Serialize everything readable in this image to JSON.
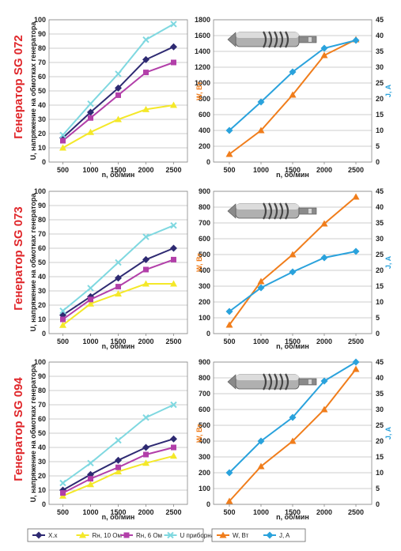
{
  "generators": [
    {
      "title": "Генератор SG 072",
      "voltage_chart": {
        "type": "line",
        "x": [
          500,
          1000,
          1500,
          2000,
          2500
        ],
        "xlabel": "n, об/мин",
        "ylabel": "U, напряжение на обмотках генератора",
        "ylim": [
          0,
          100
        ],
        "yticks": [
          0,
          10,
          20,
          30,
          40,
          50,
          60,
          70,
          80,
          90,
          100
        ],
        "series": [
          {
            "name": "Х.х",
            "values": [
              17,
              35,
              52,
              72,
              81
            ]
          },
          {
            "name": "Rн, 10 Ом",
            "values": [
              10,
              21,
              30,
              37,
              40
            ]
          },
          {
            "name": "Rн, 6 Ом",
            "values": [
              15,
              31,
              47,
              63,
              70
            ]
          },
          {
            "name": "U приборная, В",
            "values": [
              19,
              41,
              62,
              86,
              97
            ]
          }
        ]
      },
      "power_chart": {
        "type": "line",
        "x": [
          500,
          1000,
          1500,
          2000,
          2500
        ],
        "xlabel": "n, об/мин",
        "ylabel_left": "W, Вт",
        "ylabel_right": "J, A",
        "ylim_left": [
          0,
          1800
        ],
        "yticks_left": [
          0,
          200,
          400,
          600,
          800,
          1000,
          1200,
          1400,
          1600,
          1800
        ],
        "ylim_right": [
          0,
          45
        ],
        "yticks_right": [
          0,
          5,
          10,
          15,
          20,
          25,
          30,
          35,
          40,
          45
        ],
        "series": [
          {
            "name": "W, Вт",
            "axis": "left",
            "values": [
              100,
              400,
              850,
              1350,
              1550
            ]
          },
          {
            "name": "J, A",
            "axis": "right",
            "values": [
              10,
              19,
              28.5,
              36,
              38.5
            ]
          }
        ]
      }
    },
    {
      "title": "Генератор SG 073",
      "voltage_chart": {
        "type": "line",
        "x": [
          500,
          1000,
          1500,
          2000,
          2500
        ],
        "xlabel": "n, об/мин",
        "ylabel": "U, напряжение на обмотках генератора",
        "ylim": [
          0,
          100
        ],
        "yticks": [
          0,
          10,
          20,
          30,
          40,
          50,
          60,
          70,
          80,
          90,
          100
        ],
        "series": [
          {
            "name": "Х.х",
            "values": [
              13,
              26,
              39,
              52,
              60
            ]
          },
          {
            "name": "Rн, 10 Ом",
            "values": [
              6,
              21,
              28,
              35,
              35
            ]
          },
          {
            "name": "Rн, 6 Ом",
            "values": [
              10,
              24,
              33,
              45,
              52
            ]
          },
          {
            "name": "U приборная, В",
            "values": [
              16,
              32,
              50,
              68,
              76
            ]
          }
        ]
      },
      "power_chart": {
        "type": "line",
        "x": [
          500,
          1000,
          1500,
          2000,
          2500
        ],
        "xlabel": "n, об/мин",
        "ylabel_left": "W, Вт",
        "ylabel_right": "J, A",
        "ylim_left": [
          0,
          900
        ],
        "yticks_left": [
          0,
          100,
          200,
          300,
          400,
          500,
          600,
          700,
          800,
          900
        ],
        "ylim_right": [
          0,
          45
        ],
        "yticks_right": [
          0,
          5,
          10,
          15,
          20,
          25,
          30,
          35,
          40,
          45
        ],
        "series": [
          {
            "name": "W, Вт",
            "axis": "left",
            "values": [
              55,
              330,
              500,
              695,
              865
            ]
          },
          {
            "name": "J, A",
            "axis": "right",
            "values": [
              7,
              14.5,
              19.5,
              24,
              26
            ]
          }
        ]
      }
    },
    {
      "title": "Генератор SG 094",
      "voltage_chart": {
        "type": "line",
        "x": [
          500,
          1000,
          1500,
          2000,
          2500
        ],
        "xlabel": "n, об/мин",
        "ylabel": "U, напряжение на обмотках генератора",
        "ylim": [
          0,
          100
        ],
        "yticks": [
          0,
          10,
          20,
          30,
          40,
          50,
          60,
          70,
          80,
          90,
          100
        ],
        "series": [
          {
            "name": "Х.х",
            "values": [
              10,
              21,
              31,
              40,
              46
            ]
          },
          {
            "name": "Rн, 10 Ом",
            "values": [
              6,
              14,
              23,
              29,
              34
            ]
          },
          {
            "name": "Rн, 6 Ом",
            "values": [
              8,
              18,
              26,
              35,
              40
            ]
          },
          {
            "name": "U приборная, В",
            "values": [
              15,
              29,
              45,
              61,
              70
            ]
          }
        ]
      },
      "power_chart": {
        "type": "line",
        "x": [
          500,
          1000,
          1500,
          2000,
          2500
        ],
        "xlabel": "n, об/мин",
        "ylabel_left": "W, Вт",
        "ylabel_right": "J, A",
        "ylim_left": [
          0,
          900
        ],
        "yticks_left": [
          0,
          100,
          200,
          300,
          400,
          500,
          600,
          700,
          800,
          900
        ],
        "ylim_right": [
          0,
          45
        ],
        "yticks_right": [
          0,
          5,
          10,
          15,
          20,
          25,
          30,
          35,
          40,
          45
        ],
        "series": [
          {
            "name": "W, Вт",
            "axis": "left",
            "values": [
              20,
              240,
              400,
              600,
              855
            ]
          },
          {
            "name": "J, A",
            "axis": "right",
            "values": [
              10,
              20,
              27.5,
              39,
              45
            ]
          }
        ]
      }
    }
  ],
  "legend_left": [
    "Х.х",
    "Rн, 10 Ом",
    "Rн, 6 Ом",
    "U приборная, В"
  ],
  "legend_right": [
    "W, Вт",
    "J, A"
  ],
  "colors": {
    "Х.х": "#2e2a72",
    "Rн, 10 Ом": "#f4e829",
    "Rн, 6 Ом": "#b23fa9",
    "U приборная, В": "#7fd8e0",
    "W, Вт": "#f07d1b",
    "J, A": "#2aa2dc",
    "title": "#e0262a",
    "ylabel_left": "#f07d1b",
    "ylabel_right": "#2aa2dc"
  },
  "icons": [
    "generator-image-sg072",
    "generator-image-sg073",
    "generator-image-sg094"
  ]
}
